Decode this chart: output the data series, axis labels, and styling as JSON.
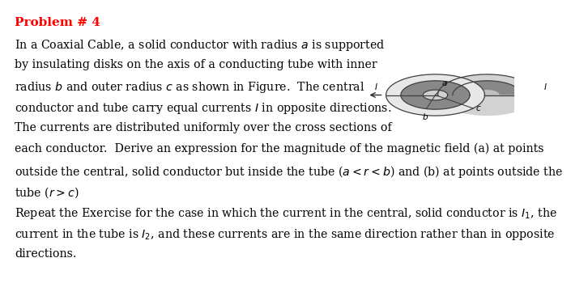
{
  "title": "Problem # 4",
  "title_color": "#FF0000",
  "title_fontsize": 11,
  "body_fontsize": 10.2,
  "background_color": "#FFFFFF",
  "short_lines": [
    "In a Coaxial Cable, a solid conductor with radius $a$ is supported",
    "by insulating disks on the axis of a conducting tube with inner",
    "radius $b$ and outer radius $c$ as shown in Figure.  The central",
    "conductor and tube carry equal currents $I$ in opposite directions.",
    "The currents are distributed uniformly over the cross sections of"
  ],
  "full_lines": [
    "each conductor.  Derive an expression for the magnitude of the magnetic field (a) at points",
    "outside the central, solid conductor but inside the tube ($a < r < b$) and (b) at points outside the",
    "tube ($r > c$)",
    "Repeat the Exercise for the case in which the current in the central, solid conductor is $I_1$, the",
    "current in the tube is $I_2$, and these currents are in the same direction rather than in opposite",
    "directions."
  ],
  "fig_width": 6.4,
  "fig_height": 3.46
}
